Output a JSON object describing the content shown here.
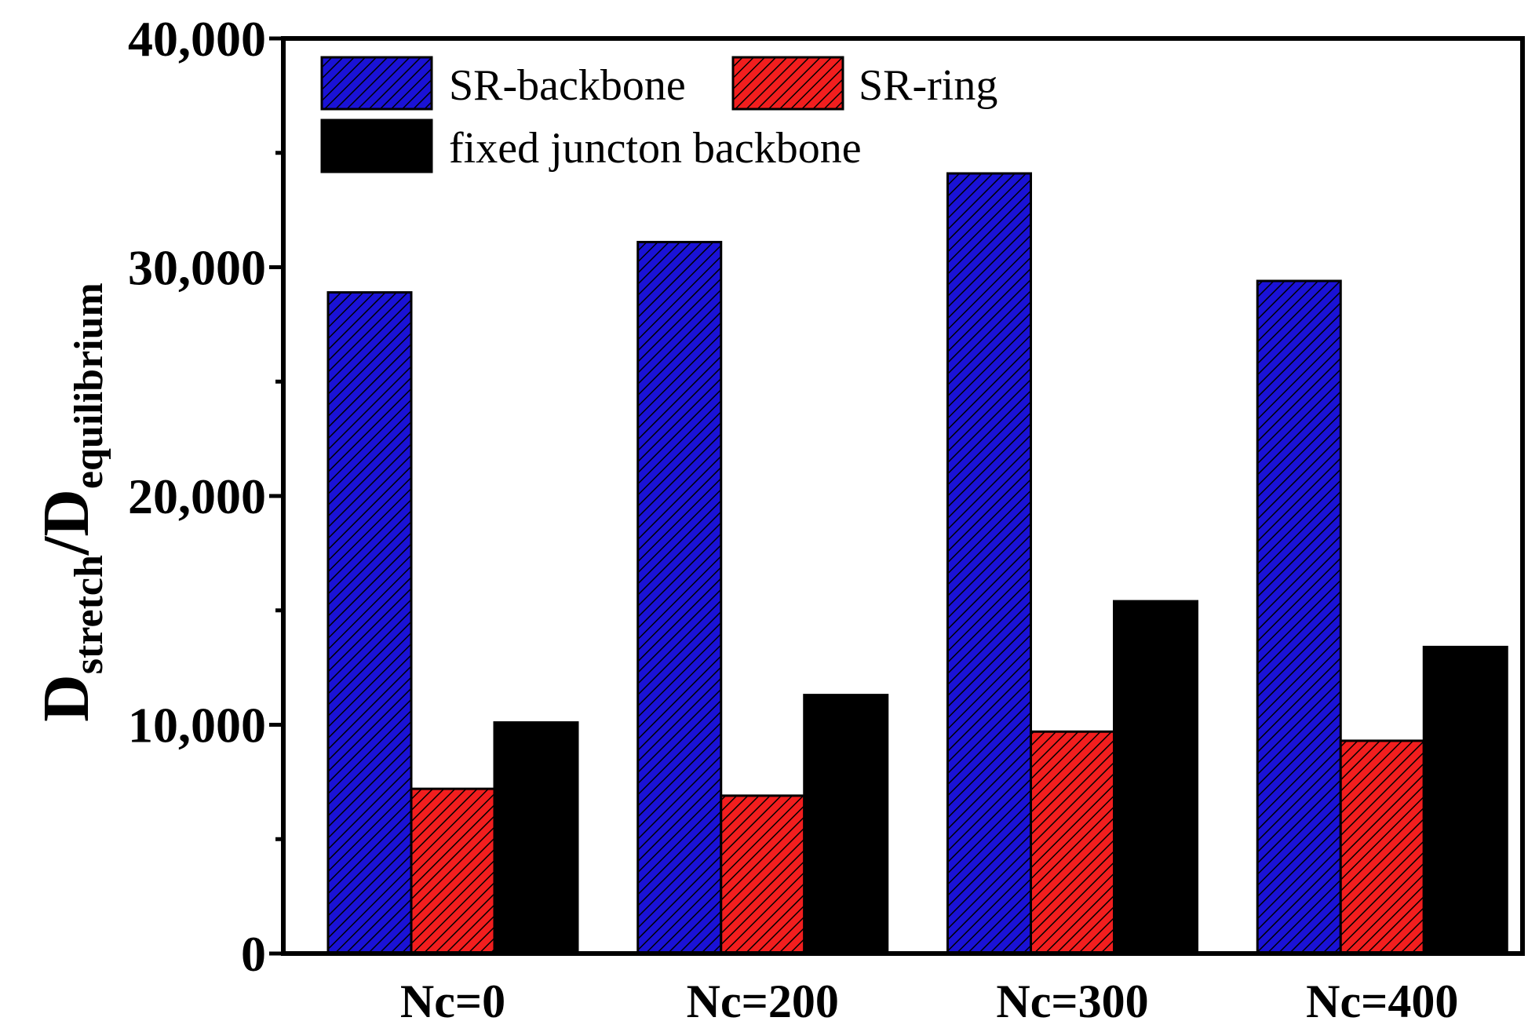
{
  "chart_data": {
    "type": "bar",
    "categories": [
      "Nc=0",
      "Nc=200",
      "Nc=300",
      "Nc=400"
    ],
    "series": [
      {
        "name": "SR-backbone",
        "color": "#1a12d6",
        "pattern": "hatch",
        "values": [
          28900,
          31100,
          34100,
          29400
        ]
      },
      {
        "name": "SR-ring",
        "color": "#f21e1e",
        "pattern": "hatch",
        "values": [
          7200,
          6900,
          9700,
          9300
        ]
      },
      {
        "name": "fixed juncton backbone",
        "color": "#000000",
        "pattern": "solid",
        "values": [
          10100,
          11300,
          15400,
          13400
        ]
      }
    ],
    "ylim": [
      0,
      40000
    ],
    "yticks": [
      0,
      10000,
      20000,
      30000,
      40000
    ],
    "ytick_labels": [
      "0",
      "10,000",
      "20,000",
      "30,000",
      "40,000"
    ],
    "ylabel_main": "D",
    "ylabel_sub1": "stretch",
    "ylabel_sep": "/D",
    "ylabel_sub2": "equilibrium",
    "xlabel": "",
    "title": "",
    "legend_position": "top-left"
  }
}
